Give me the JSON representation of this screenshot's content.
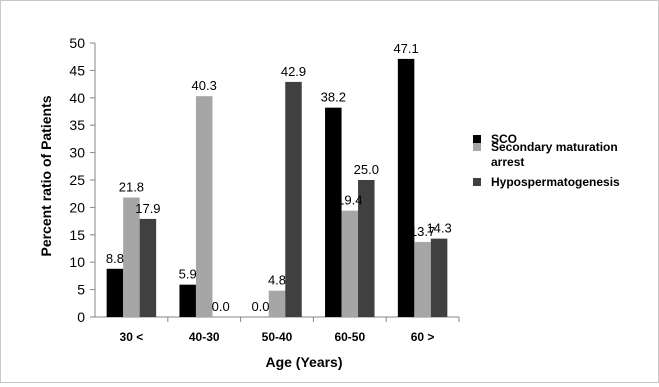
{
  "chart_data": {
    "type": "bar",
    "title": "",
    "xlabel": "Age (Years)",
    "ylabel": "Percent ratio of Patients",
    "ylim": [
      0,
      50
    ],
    "yticks": [
      0,
      5,
      10,
      15,
      20,
      25,
      30,
      35,
      40,
      45,
      50
    ],
    "categories": [
      "30  <",
      "40-30",
      "50-40",
      "60-50",
      "60  >"
    ],
    "series": [
      {
        "name": "SCO",
        "color": "#000000",
        "values": [
          8.8,
          5.9,
          0.0,
          38.2,
          47.1
        ],
        "labels": [
          "8.8",
          "5.9",
          "0.0",
          "38.2",
          "47.1"
        ]
      },
      {
        "name": "Secondary maturation arrest",
        "color": "#a6a6a6",
        "values": [
          21.8,
          40.3,
          4.8,
          19.4,
          13.7
        ],
        "labels": [
          "21.8",
          "40.3",
          "4.8",
          "19.4",
          "13.7"
        ]
      },
      {
        "name": "Hypospermatogenesis",
        "color": "#404040",
        "values": [
          17.9,
          0.0,
          42.9,
          25.0,
          14.3
        ],
        "labels": [
          "17.9",
          "0.0",
          "42.9",
          "25.0",
          "14.3"
        ]
      }
    ],
    "grid": false,
    "legend_position": "right"
  }
}
